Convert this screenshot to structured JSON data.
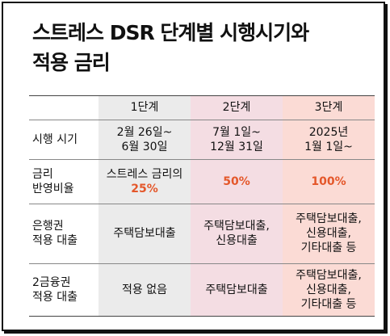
{
  "title": {
    "line1": "스트레스 DSR 단계별 시행시기와",
    "line2": "적용 금리"
  },
  "colors": {
    "stage1_bg": "#ebebeb",
    "stage2_bg": "#f4dde3",
    "stage3_bg": "#fbdbd5",
    "accent": "#e4572a"
  },
  "table": {
    "headers": [
      "1단계",
      "2단계",
      "3단계"
    ],
    "rows": [
      {
        "label": "시행 시기",
        "cells": [
          "2월 26일~\n6월 30일",
          "7월 1일~\n12월 31일",
          "2025년\n1월 1일~"
        ]
      },
      {
        "label": "금리\n반영비율",
        "cells": [
          "스트레스 금리의",
          "50%",
          "100%"
        ],
        "stage1_value": "25%"
      },
      {
        "label": "은행권\n적용 대출",
        "cells": [
          "주택담보대출",
          "주택담보대출,\n신용대출",
          "주택담보대출,\n신용대출,\n기타대출 등"
        ]
      },
      {
        "label": "2금융권\n적용 대출",
        "cells": [
          "적용 없음",
          "주택담보대출",
          "주택담보대출,\n신용대출,\n기타대출 등"
        ]
      }
    ]
  }
}
